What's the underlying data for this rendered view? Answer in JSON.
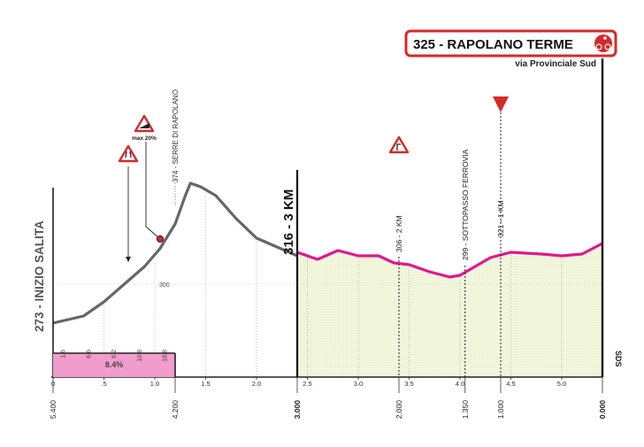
{
  "chart_data": {
    "type": "area",
    "title": "",
    "xlabel": "",
    "ylabel": "",
    "x_ticks": [
      "0",
      ".5",
      "1.0",
      "1.5",
      "2.0",
      "2.5",
      "3.0",
      "3.5",
      "4.0",
      "4.5",
      "5.0"
    ],
    "x_range_km": [
      0,
      5.4
    ],
    "y_ref_label": "300",
    "series": [
      {
        "segment": "approach",
        "color": "#666666",
        "points": [
          [
            0,
            278
          ],
          [
            0.3,
            282
          ],
          [
            0.5,
            290
          ],
          [
            0.7,
            300
          ],
          [
            0.9,
            310
          ],
          [
            1.05,
            320
          ],
          [
            1.2,
            334
          ],
          [
            1.3,
            350
          ],
          [
            1.35,
            357
          ],
          [
            1.45,
            355
          ],
          [
            1.6,
            350
          ],
          [
            1.8,
            337
          ],
          [
            2.0,
            326
          ],
          [
            2.2,
            321
          ],
          [
            2.4,
            316
          ]
        ]
      },
      {
        "segment": "final",
        "color": "#e0188f",
        "points": [
          [
            2.4,
            318
          ],
          [
            2.6,
            314
          ],
          [
            2.8,
            319
          ],
          [
            3.0,
            316
          ],
          [
            3.2,
            316
          ],
          [
            3.35,
            312
          ],
          [
            3.5,
            311
          ],
          [
            3.7,
            307
          ],
          [
            3.9,
            304
          ],
          [
            4.0,
            305
          ],
          [
            4.15,
            310
          ],
          [
            4.3,
            315
          ],
          [
            4.5,
            318
          ],
          [
            4.8,
            317
          ],
          [
            5.0,
            316
          ],
          [
            5.2,
            317
          ],
          [
            5.4,
            323
          ]
        ]
      }
    ],
    "climb": {
      "label": "INIZIO SALITA",
      "altitude": "273",
      "segment_gradients": [
        "1.6",
        "6.6",
        "6.2",
        "10.8",
        "18.8"
      ],
      "average_label": "8.4%",
      "average_color": "#f09ccc",
      "max_label": "max 20%"
    },
    "summit": {
      "label": "374 - SERRE DI RAPOLANO"
    },
    "waypoints": [
      {
        "label": "316 - 3 KM",
        "bold": true
      },
      {
        "label": "306 - 2 KM"
      },
      {
        "label": "299 - SOTTOPASSO FERROVIA"
      },
      {
        "label": "321 - 1 KM"
      }
    ],
    "distance_labels": [
      "5.400",
      "4.200",
      "3.000",
      "2.000",
      "1.350",
      "1.000",
      "0.000"
    ],
    "finish": {
      "title": "325 - RAPOLANO TERME",
      "subtitle": "via Provinciale Sud",
      "color": "#d42a2a",
      "side_label": "SDS"
    },
    "icons": [
      "road-narrowing-icon",
      "steep-climb-icon",
      "sharp-turn-icon",
      "flamme-rouge-triangle-icon",
      "finish-cyclist-icon"
    ],
    "colors": {
      "final_fill": "#f2f6dc",
      "climb_line": "#666666",
      "final_line": "#e0188f",
      "accent": "#d42a2a"
    }
  }
}
